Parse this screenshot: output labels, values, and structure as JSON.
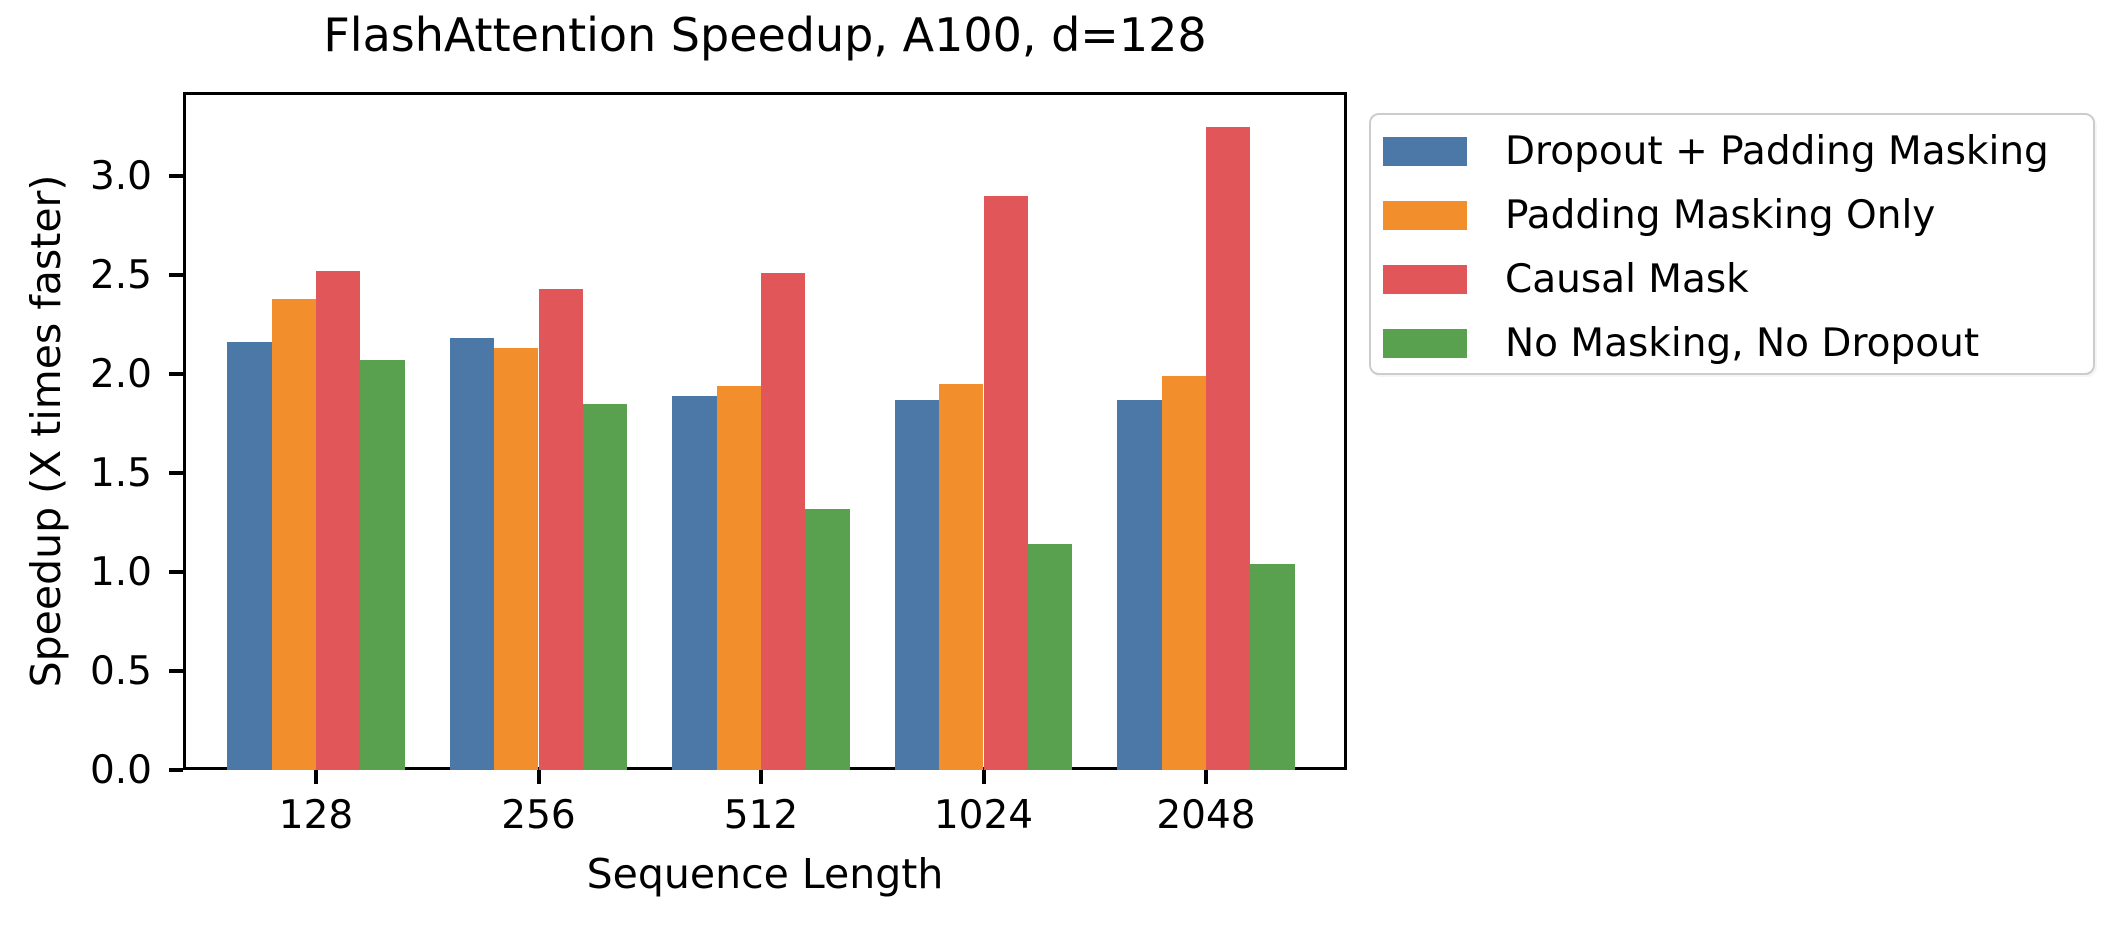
{
  "chart_data": {
    "type": "bar",
    "title": "FlashAttention Speedup, A100, d=128",
    "xlabel": "Sequence Length",
    "ylabel": "Speedup (X times faster)",
    "categories": [
      "128",
      "256",
      "512",
      "1024",
      "2048"
    ],
    "series": [
      {
        "name": "Dropout + Padding Masking",
        "color": "#4c78a8",
        "values": [
          2.16,
          2.18,
          1.89,
          1.87,
          1.87
        ]
      },
      {
        "name": "Padding Masking Only",
        "color": "#f28e2b",
        "values": [
          2.38,
          2.13,
          1.94,
          1.95,
          1.99
        ]
      },
      {
        "name": "Causal Mask",
        "color": "#e15759",
        "values": [
          2.52,
          2.43,
          2.51,
          2.9,
          3.25
        ]
      },
      {
        "name": "No Masking, No Dropout",
        "color": "#59a14f",
        "values": [
          2.07,
          1.85,
          1.32,
          1.14,
          1.04
        ]
      }
    ],
    "ytick_labels": [
      "0.0",
      "0.5",
      "1.0",
      "1.5",
      "2.0",
      "2.5",
      "3.0"
    ],
    "yticks": [
      0.0,
      0.5,
      1.0,
      1.5,
      2.0,
      2.5,
      3.0
    ],
    "ylim": [
      0,
      3.42
    ],
    "grid": false,
    "legend_position": "outside-upper-right",
    "axis_color": "#000000",
    "background_color": "#ffffff"
  }
}
